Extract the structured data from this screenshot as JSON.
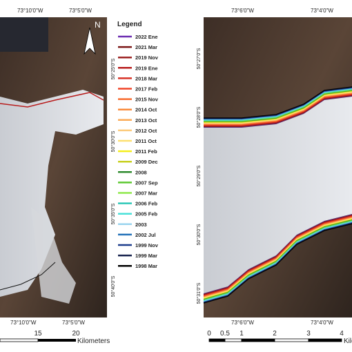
{
  "left_map": {
    "north": "N",
    "top_lon_labels": [
      "73°10'0\"W",
      "73°5'0\"W"
    ],
    "bottom_lon_labels": [
      "73°10'0\"W",
      "73°5'0\"W"
    ],
    "lat_labels": [
      "50°25'0\"S",
      "50°30'0\"S",
      "50°35'0\"S",
      "50°40'0\"S"
    ],
    "scale_labels": [
      "15",
      "20"
    ],
    "scale_unit": "Kilometers"
  },
  "legend": {
    "title": "Legend",
    "items": [
      {
        "label": "2022 Ene",
        "color": "#6a2bb0"
      },
      {
        "label": "2021 Mar",
        "color": "#7a1414"
      },
      {
        "label": "2019 Nov",
        "color": "#9c2222"
      },
      {
        "label": "2019 Ene",
        "color": "#b81c1c"
      },
      {
        "label": "2018 Mar",
        "color": "#d83226"
      },
      {
        "label": "2017 Feb",
        "color": "#f04428"
      },
      {
        "label": "2015 Nov",
        "color": "#f86a2c"
      },
      {
        "label": "2014 Oct",
        "color": "#fa8a3a"
      },
      {
        "label": "2013 Oct",
        "color": "#fbaa55"
      },
      {
        "label": "2012 Oct",
        "color": "#fcca7a"
      },
      {
        "label": "2011 Oct",
        "color": "#fde070"
      },
      {
        "label": "2011 Feb",
        "color": "#f4ee1a"
      },
      {
        "label": "2009 Dec",
        "color": "#c8d020"
      },
      {
        "label": "2008",
        "color": "#2e8a2e"
      },
      {
        "label": "2007 Sep",
        "color": "#5cc830"
      },
      {
        "label": "2007 Mar",
        "color": "#8ee84a"
      },
      {
        "label": "2006 Feb",
        "color": "#2ec8b8"
      },
      {
        "label": "2005 Feb",
        "color": "#48e0d8"
      },
      {
        "label": "2003",
        "color": "#9ad4ee"
      },
      {
        "label": "2002 Jul",
        "color": "#2070b8"
      },
      {
        "label": "1999 Nov",
        "color": "#1c3c8c"
      },
      {
        "label": "1999 Mar",
        "color": "#14204c"
      },
      {
        "label": "1998 Mar",
        "color": "#000000"
      }
    ]
  },
  "right_map": {
    "top_lon_labels": [
      "73°6'0\"W",
      "73°4'0\"W"
    ],
    "bottom_lon_labels": [
      "73°6'0\"W",
      "73°4'0\"W"
    ],
    "lat_labels": [
      "50°27'0\"S",
      "50°28'0\"S",
      "50°29'0\"S",
      "50°30'0\"S",
      "50°31'0\"S"
    ],
    "scale_labels": [
      "0",
      "0.5",
      "1",
      "2",
      "3",
      "4"
    ],
    "scale_unit": "Kilometers"
  }
}
